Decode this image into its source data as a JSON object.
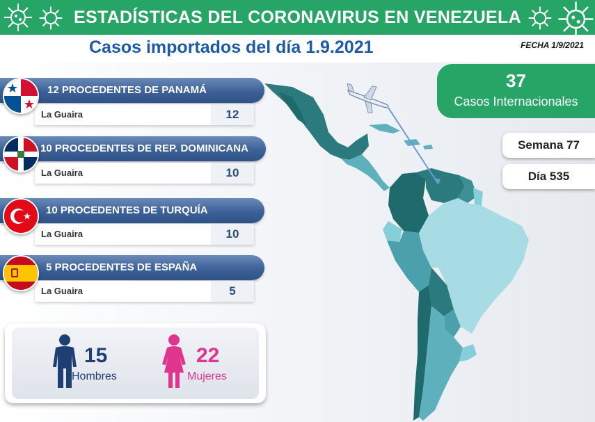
{
  "header": {
    "title": "ESTADÍSTICAS DEL CORONAVIRUS EN VENEZUELA",
    "subtitle": "Casos importados del día 1.9.2021",
    "fecha": "FECHA 1/9/2021"
  },
  "countries": [
    {
      "title": "12 PROCEDENTES DE PANAMÁ",
      "location": "La Guaira",
      "value": "12",
      "flag": "panama-flag"
    },
    {
      "title": "10 PROCEDENTES DE REP. DOMINICANA",
      "location": "La Guaira",
      "value": "10",
      "flag": "dominican-republic-flag"
    },
    {
      "title": "10 PROCEDENTES DE TURQUÍA",
      "location": "La Guaira",
      "value": "10",
      "flag": "turkey-flag"
    },
    {
      "title": "5 PROCEDENTES DE ESPAÑA",
      "location": "La Guaira",
      "value": "5",
      "flag": "spain-flag"
    }
  ],
  "international": {
    "count": "37",
    "label": "Casos Internacionales"
  },
  "semana": "Semana 77",
  "dia": "Día 535",
  "gender": {
    "men_count": "15",
    "men_label": "Hombres",
    "women_count": "22",
    "women_label": "Mujeres"
  },
  "colors": {
    "banner_green": "#27a566",
    "title_blue": "#1d5ba8",
    "men_blue": "#1e3f73",
    "women_pink": "#e0358f"
  }
}
